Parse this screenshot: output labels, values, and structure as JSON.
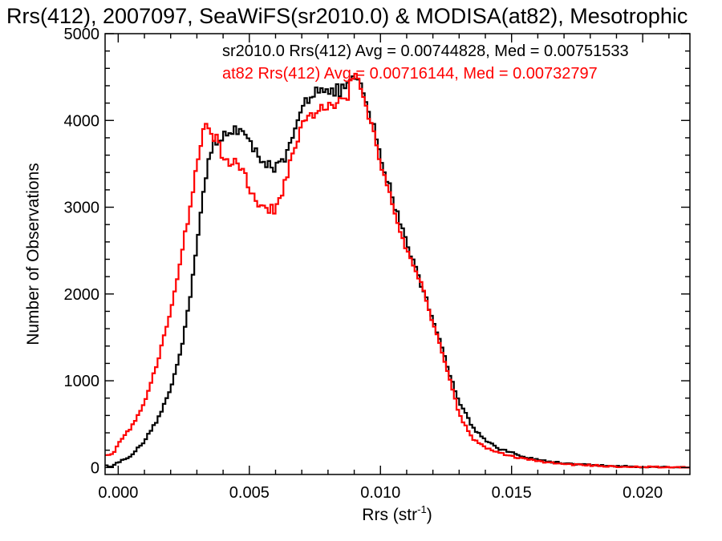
{
  "chart_data": {
    "type": "line",
    "title": "Rrs(412), 2007097, SeaWiFS(sr2010.0) & MODISA(at82), Mesotrophic",
    "xlabel_main": "Rrs (str",
    "xlabel_sup": "-1",
    "xlabel_close": ")",
    "ylabel": "Number of Observations",
    "xlim": [
      -0.0005,
      0.0218
    ],
    "ylim": [
      -80,
      5000
    ],
    "xticks": [
      0.0,
      0.005,
      0.01,
      0.015,
      0.02
    ],
    "xtick_labels": [
      "0.000",
      "0.005",
      "0.010",
      "0.015",
      "0.020"
    ],
    "yticks": [
      0,
      1000,
      2000,
      3000,
      4000,
      5000
    ],
    "ytick_labels": [
      "0",
      "1000",
      "2000",
      "3000",
      "4000",
      "5000"
    ],
    "grid": false,
    "legend_position": "top",
    "series": [
      {
        "name": "sr2010.0",
        "color": "#000000",
        "legend_text": "sr2010.0 Rrs(412) Avg = 0.00744828, Med = 0.00751533",
        "points": [
          [
            -0.0002,
            20
          ],
          [
            0.0,
            60
          ],
          [
            0.0005,
            140
          ],
          [
            0.001,
            300
          ],
          [
            0.0015,
            550
          ],
          [
            0.002,
            900
          ],
          [
            0.0025,
            1500
          ],
          [
            0.0028,
            2100
          ],
          [
            0.003,
            2600
          ],
          [
            0.0032,
            3050
          ],
          [
            0.0034,
            3450
          ],
          [
            0.0036,
            3700
          ],
          [
            0.0038,
            3720
          ],
          [
            0.004,
            3820
          ],
          [
            0.0042,
            3870
          ],
          [
            0.0045,
            3920
          ],
          [
            0.0048,
            3850
          ],
          [
            0.005,
            3720
          ],
          [
            0.0053,
            3620
          ],
          [
            0.0055,
            3560
          ],
          [
            0.0058,
            3480
          ],
          [
            0.006,
            3450
          ],
          [
            0.0063,
            3520
          ],
          [
            0.0065,
            3650
          ],
          [
            0.0068,
            3900
          ],
          [
            0.007,
            4150
          ],
          [
            0.0073,
            4280
          ],
          [
            0.0076,
            4380
          ],
          [
            0.0078,
            4420
          ],
          [
            0.008,
            4300
          ],
          [
            0.0083,
            4330
          ],
          [
            0.0086,
            4360
          ],
          [
            0.0088,
            4450
          ],
          [
            0.009,
            4470
          ],
          [
            0.0093,
            4350
          ],
          [
            0.0095,
            4150
          ],
          [
            0.0098,
            3850
          ],
          [
            0.01,
            3550
          ],
          [
            0.0103,
            3300
          ],
          [
            0.0105,
            3050
          ],
          [
            0.0108,
            2800
          ],
          [
            0.011,
            2600
          ],
          [
            0.0113,
            2350
          ],
          [
            0.0115,
            2150
          ],
          [
            0.0118,
            1900
          ],
          [
            0.012,
            1700
          ],
          [
            0.0123,
            1450
          ],
          [
            0.0125,
            1200
          ],
          [
            0.0128,
            950
          ],
          [
            0.013,
            750
          ],
          [
            0.0133,
            600
          ],
          [
            0.0135,
            470
          ],
          [
            0.014,
            320
          ],
          [
            0.0145,
            220
          ],
          [
            0.015,
            170
          ],
          [
            0.0155,
            120
          ],
          [
            0.016,
            90
          ],
          [
            0.0165,
            65
          ],
          [
            0.017,
            50
          ],
          [
            0.018,
            30
          ],
          [
            0.019,
            15
          ],
          [
            0.02,
            8
          ],
          [
            0.021,
            4
          ],
          [
            0.0218,
            2
          ]
        ]
      },
      {
        "name": "at82",
        "color": "#ff0000",
        "legend_text": "at82 Rrs(412) Avg = 0.00716144, Med = 0.00732797",
        "points": [
          [
            -0.0002,
            150
          ],
          [
            0.0,
            280
          ],
          [
            0.0005,
            470
          ],
          [
            0.001,
            750
          ],
          [
            0.0015,
            1200
          ],
          [
            0.002,
            1800
          ],
          [
            0.0025,
            2600
          ],
          [
            0.0028,
            3100
          ],
          [
            0.003,
            3500
          ],
          [
            0.0032,
            3800
          ],
          [
            0.0034,
            3980
          ],
          [
            0.0036,
            3850
          ],
          [
            0.0038,
            3750
          ],
          [
            0.004,
            3580
          ],
          [
            0.0042,
            3530
          ],
          [
            0.0045,
            3500
          ],
          [
            0.0048,
            3380
          ],
          [
            0.005,
            3220
          ],
          [
            0.0053,
            3020
          ],
          [
            0.0055,
            2980
          ],
          [
            0.0058,
            2980
          ],
          [
            0.006,
            2970
          ],
          [
            0.0063,
            3200
          ],
          [
            0.0065,
            3450
          ],
          [
            0.0068,
            3700
          ],
          [
            0.007,
            3900
          ],
          [
            0.0073,
            4050
          ],
          [
            0.0076,
            4120
          ],
          [
            0.0078,
            4170
          ],
          [
            0.008,
            4130
          ],
          [
            0.0083,
            4180
          ],
          [
            0.0086,
            4200
          ],
          [
            0.0088,
            4350
          ],
          [
            0.009,
            4520
          ],
          [
            0.0093,
            4350
          ],
          [
            0.0095,
            4100
          ],
          [
            0.0098,
            3850
          ],
          [
            0.01,
            3500
          ],
          [
            0.0103,
            3250
          ],
          [
            0.0105,
            2980
          ],
          [
            0.0108,
            2700
          ],
          [
            0.011,
            2480
          ],
          [
            0.0113,
            2330
          ],
          [
            0.0115,
            2150
          ],
          [
            0.0118,
            1900
          ],
          [
            0.012,
            1650
          ],
          [
            0.0123,
            1400
          ],
          [
            0.0125,
            1150
          ],
          [
            0.0128,
            850
          ],
          [
            0.013,
            620
          ],
          [
            0.0133,
            450
          ],
          [
            0.0135,
            340
          ],
          [
            0.014,
            230
          ],
          [
            0.0145,
            170
          ],
          [
            0.015,
            130
          ],
          [
            0.0155,
            100
          ],
          [
            0.016,
            75
          ],
          [
            0.0165,
            55
          ],
          [
            0.017,
            40
          ],
          [
            0.018,
            25
          ],
          [
            0.019,
            12
          ],
          [
            0.02,
            6
          ],
          [
            0.021,
            3
          ],
          [
            0.0218,
            1
          ]
        ]
      }
    ]
  }
}
